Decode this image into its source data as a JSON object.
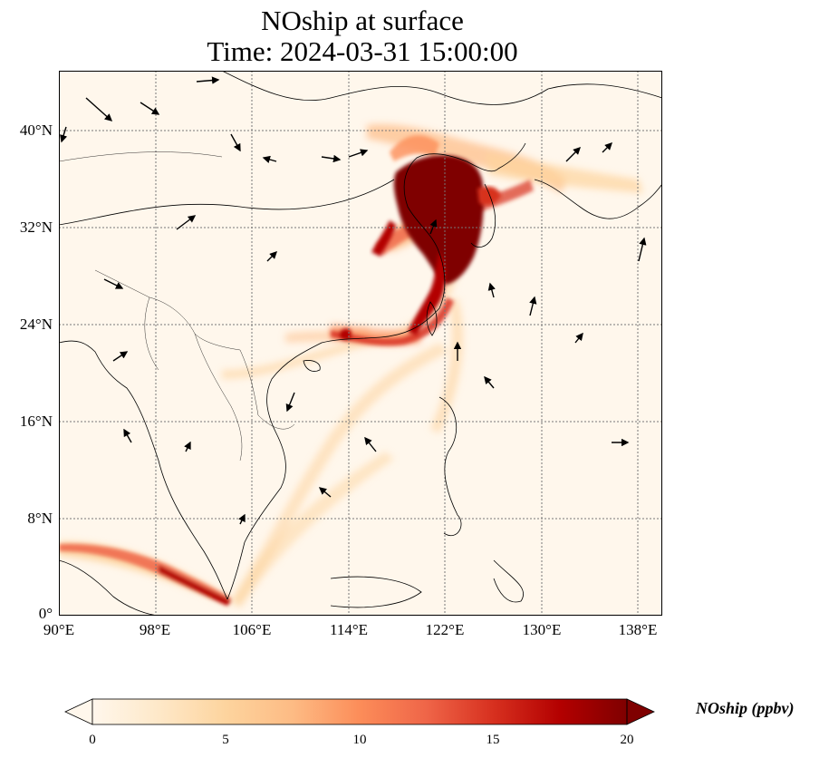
{
  "title": {
    "line1": "NOship at surface",
    "line2": "Time: 2024-03-31 15:00:00"
  },
  "map": {
    "lon_range": [
      90,
      140
    ],
    "lat_range": [
      0,
      45
    ],
    "projection": "plate carree",
    "gridlines": true,
    "colormap": "OrRd",
    "y_ticks": [
      "0°",
      "8°N",
      "16°N",
      "24°N",
      "32°N",
      "40°N"
    ],
    "x_ticks": [
      "90°E",
      "98°E",
      "106°E",
      "114°E",
      "122°E",
      "130°E",
      "138°E"
    ],
    "features": [
      "coastlines",
      "country borders",
      "NOship concentration field",
      "wind vectors"
    ]
  },
  "colorbar": {
    "label": "NOship (ppbv)",
    "min": 0,
    "max": 20,
    "extend": "both",
    "ticks": [
      "0",
      "5",
      "10",
      "15",
      "20"
    ],
    "colors": [
      "#fff7ec",
      "#fee8c8",
      "#fdd49e",
      "#fdbb84",
      "#fc8d59",
      "#ef6548",
      "#d7301f",
      "#b30000",
      "#7f0000"
    ]
  }
}
